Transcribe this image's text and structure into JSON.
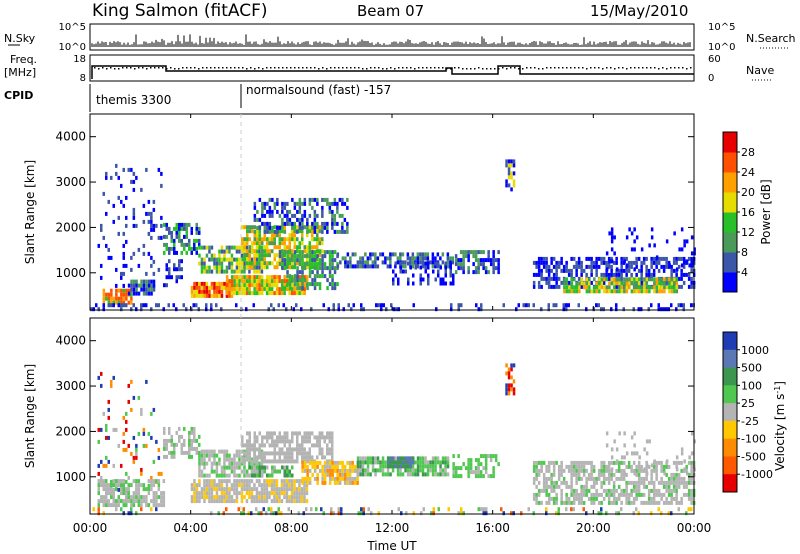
{
  "header": {
    "station": "King Salmon (fitACF)",
    "beam": "Beam 07",
    "date": "15/May/2010"
  },
  "side_labels": {
    "nsky": "N.Sky",
    "nsearch": "N.Search",
    "freq": "Freq.",
    "freq_unit": "[MHz]",
    "nave": "Nave",
    "cpid": "CPID"
  },
  "cpid_modes": [
    {
      "label": "themis 3300",
      "start_hour": 0
    },
    {
      "label": "normalsound (fast) -157",
      "start_hour": 6
    }
  ],
  "x_axis": {
    "title": "Time UT",
    "ticks": [
      "00:00",
      "04:00",
      "08:00",
      "12:00",
      "16:00",
      "20:00",
      "00:00"
    ]
  },
  "colors": {
    "power": [
      "#0000ff",
      "#3c56a8",
      "#4a9a5a",
      "#28c028",
      "#e6dc00",
      "#ffa000",
      "#ff5000",
      "#e60000"
    ],
    "velocity": [
      "#1e3cb4",
      "#5a78b4",
      "#3c9650",
      "#50c850",
      "#b4b4b4",
      "#ffc800",
      "#ff8c00",
      "#ff5a00",
      "#e60000"
    ]
  },
  "chart_data": [
    {
      "type": "line",
      "title": "N.Sky / N.Search",
      "y_ticks_left": [
        "10^5",
        "10^0"
      ],
      "y_ticks_right": [
        "10^5",
        "10^0"
      ],
      "x_range_hours": [
        0,
        24
      ]
    },
    {
      "type": "line",
      "title": "Freq. / Nave",
      "y_ticks_left": [
        "18",
        "8"
      ],
      "y_ticks_right": [
        "60",
        "0"
      ],
      "x_range_hours": [
        0,
        24
      ]
    },
    {
      "type": "heatmap",
      "name": "power",
      "ylabel": "Slant Range [km]",
      "y_ticks": [
        "1000",
        "2000",
        "3000",
        "4000"
      ],
      "ylim": [
        180,
        4500
      ],
      "x_range_hours": [
        0,
        24
      ],
      "colorbar_label": "Power [dB]",
      "colorbar_ticks": [
        "4",
        "8",
        "12",
        "16",
        "20",
        "24",
        "28"
      ],
      "clusters": [
        {
          "t0": 0.3,
          "t1": 2.8,
          "r0": 700,
          "r1": 3400,
          "density": 0.12,
          "lv": [
            0,
            1
          ]
        },
        {
          "t0": 0.5,
          "t1": 1.6,
          "r0": 380,
          "r1": 650,
          "density": 0.85,
          "lv": [
            5,
            6,
            3
          ]
        },
        {
          "t0": 1.5,
          "t1": 2.5,
          "r0": 550,
          "r1": 850,
          "density": 0.8,
          "lv": [
            0,
            1,
            2
          ]
        },
        {
          "t0": 2.9,
          "t1": 4.3,
          "r0": 1400,
          "r1": 2100,
          "density": 0.55,
          "lv": [
            0,
            1,
            2,
            3
          ]
        },
        {
          "t0": 2.9,
          "t1": 3.6,
          "r0": 700,
          "r1": 1300,
          "density": 0.4,
          "lv": [
            0,
            1
          ]
        },
        {
          "t0": 4.0,
          "t1": 5.6,
          "r0": 450,
          "r1": 800,
          "density": 0.9,
          "lv": [
            5,
            6,
            7,
            4
          ]
        },
        {
          "t0": 5.4,
          "t1": 8.6,
          "r0": 550,
          "r1": 950,
          "density": 0.9,
          "lv": [
            4,
            5,
            6,
            3
          ]
        },
        {
          "t0": 4.3,
          "t1": 6.8,
          "r0": 1000,
          "r1": 1600,
          "density": 0.7,
          "lv": [
            2,
            3,
            4,
            1
          ]
        },
        {
          "t0": 6.0,
          "t1": 9.2,
          "r0": 1150,
          "r1": 2050,
          "density": 0.75,
          "lv": [
            2,
            3,
            4,
            5
          ]
        },
        {
          "t0": 7.5,
          "t1": 9.8,
          "r0": 700,
          "r1": 1500,
          "density": 0.6,
          "lv": [
            1,
            2,
            3
          ]
        },
        {
          "t0": 6.5,
          "t1": 10.2,
          "r0": 1900,
          "r1": 2650,
          "density": 0.5,
          "lv": [
            0,
            1,
            2
          ]
        },
        {
          "t0": 9.8,
          "t1": 14.4,
          "r0": 1100,
          "r1": 1450,
          "density": 0.6,
          "lv": [
            0,
            1,
            2
          ]
        },
        {
          "t0": 12.0,
          "t1": 14.4,
          "r0": 750,
          "r1": 1250,
          "density": 0.35,
          "lv": [
            0,
            1
          ]
        },
        {
          "t0": 14.5,
          "t1": 16.2,
          "r0": 1050,
          "r1": 1500,
          "density": 0.6,
          "lv": [
            0,
            1,
            2
          ]
        },
        {
          "t0": 16.5,
          "t1": 16.8,
          "r0": 2800,
          "r1": 3500,
          "density": 0.7,
          "lv": [
            0,
            1,
            4
          ]
        },
        {
          "t0": 17.6,
          "t1": 24.0,
          "r0": 650,
          "r1": 1350,
          "density": 0.6,
          "lv": [
            0,
            1
          ]
        },
        {
          "t0": 18.8,
          "t1": 23.3,
          "r0": 550,
          "r1": 900,
          "density": 0.8,
          "lv": [
            3,
            4,
            5,
            2
          ]
        },
        {
          "t0": 20.5,
          "t1": 24.0,
          "r0": 1100,
          "r1": 2000,
          "density": 0.12,
          "lv": [
            0
          ]
        },
        {
          "t0": 0.0,
          "t1": 24.0,
          "r0": 190,
          "r1": 330,
          "density": 0.25,
          "lv": [
            0,
            1
          ]
        }
      ]
    },
    {
      "type": "heatmap",
      "name": "velocity",
      "ylabel": "Slant Range [km]",
      "y_ticks": [
        "1000",
        "2000",
        "3000",
        "4000"
      ],
      "ylim": [
        180,
        4500
      ],
      "x_range_hours": [
        0,
        24
      ],
      "colorbar_label": "Velocity [m s-1]",
      "colorbar_ticks": [
        "1000",
        "500",
        "100",
        "25",
        "-25",
        "-100",
        "-500",
        "-1000"
      ],
      "clusters": [
        {
          "t0": 0.3,
          "t1": 2.8,
          "r0": 700,
          "r1": 3400,
          "density": 0.12,
          "lv": [
            4,
            0,
            8,
            3,
            6
          ]
        },
        {
          "t0": 0.3,
          "t1": 2.9,
          "r0": 350,
          "r1": 950,
          "density": 0.75,
          "lv": [
            4,
            4,
            4,
            3
          ]
        },
        {
          "t0": 2.9,
          "t1": 4.3,
          "r0": 1400,
          "r1": 2100,
          "density": 0.55,
          "lv": [
            4,
            4,
            3
          ]
        },
        {
          "t0": 4.0,
          "t1": 8.6,
          "r0": 450,
          "r1": 950,
          "density": 0.85,
          "lv": [
            4,
            4,
            4,
            5
          ]
        },
        {
          "t0": 4.3,
          "t1": 6.8,
          "r0": 1000,
          "r1": 1600,
          "density": 0.7,
          "lv": [
            4,
            4,
            3
          ]
        },
        {
          "t0": 6.0,
          "t1": 9.6,
          "r0": 1300,
          "r1": 2000,
          "density": 0.7,
          "lv": [
            4,
            4,
            4
          ]
        },
        {
          "t0": 6.2,
          "t1": 8.0,
          "r0": 1050,
          "r1": 1250,
          "density": 0.8,
          "lv": [
            3,
            2,
            4
          ]
        },
        {
          "t0": 8.4,
          "t1": 10.6,
          "r0": 900,
          "r1": 1350,
          "density": 0.8,
          "lv": [
            5,
            5,
            6,
            4
          ]
        },
        {
          "t0": 10.6,
          "t1": 14.2,
          "r0": 1050,
          "r1": 1450,
          "density": 0.75,
          "lv": [
            3,
            3,
            2,
            4
          ]
        },
        {
          "t0": 11.8,
          "t1": 12.8,
          "r0": 1250,
          "r1": 1450,
          "density": 0.85,
          "lv": [
            2,
            2,
            1
          ]
        },
        {
          "t0": 14.4,
          "t1": 16.2,
          "r0": 1050,
          "r1": 1500,
          "density": 0.5,
          "lv": [
            3,
            3,
            4
          ]
        },
        {
          "t0": 16.5,
          "t1": 16.8,
          "r0": 2800,
          "r1": 3500,
          "density": 0.7,
          "lv": [
            0,
            8,
            6
          ]
        },
        {
          "t0": 17.6,
          "t1": 24.0,
          "r0": 450,
          "r1": 1350,
          "density": 0.65,
          "lv": [
            4,
            4,
            4,
            3
          ]
        },
        {
          "t0": 20.5,
          "t1": 24.0,
          "r0": 1100,
          "r1": 2000,
          "density": 0.12,
          "lv": [
            4
          ]
        },
        {
          "t0": 0.0,
          "t1": 24.0,
          "r0": 190,
          "r1": 330,
          "density": 0.25,
          "lv": [
            4,
            5,
            3,
            7,
            0
          ]
        }
      ]
    }
  ]
}
